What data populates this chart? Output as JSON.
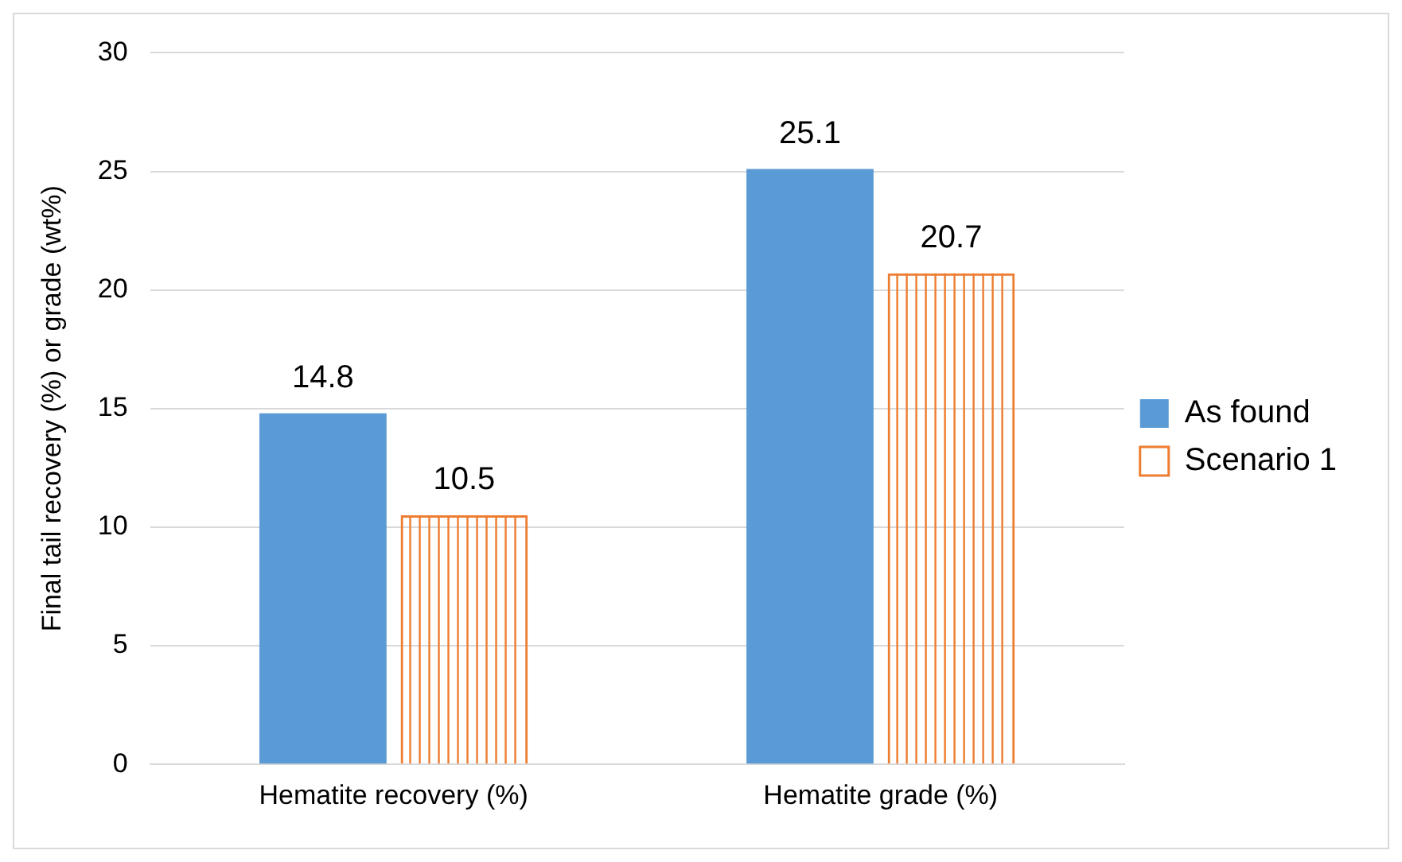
{
  "chart_data": {
    "type": "bar",
    "ylabel": "Final tail recovery (%) or grade (wt%)",
    "categories": [
      "Hematite recovery (%)",
      "Hematite grade (%)"
    ],
    "series": [
      {
        "name": "As found",
        "color": "#5b9bd5",
        "values": [
          14.8,
          25.1
        ]
      },
      {
        "name": "Scenario 1",
        "color": "#ed7d31",
        "values": [
          10.5,
          20.7
        ]
      }
    ],
    "ylim": [
      0,
      30
    ],
    "yticks": [
      0,
      5,
      10,
      15,
      20,
      25,
      30
    ],
    "grid": "y",
    "legend": "right",
    "data_labels": true
  }
}
